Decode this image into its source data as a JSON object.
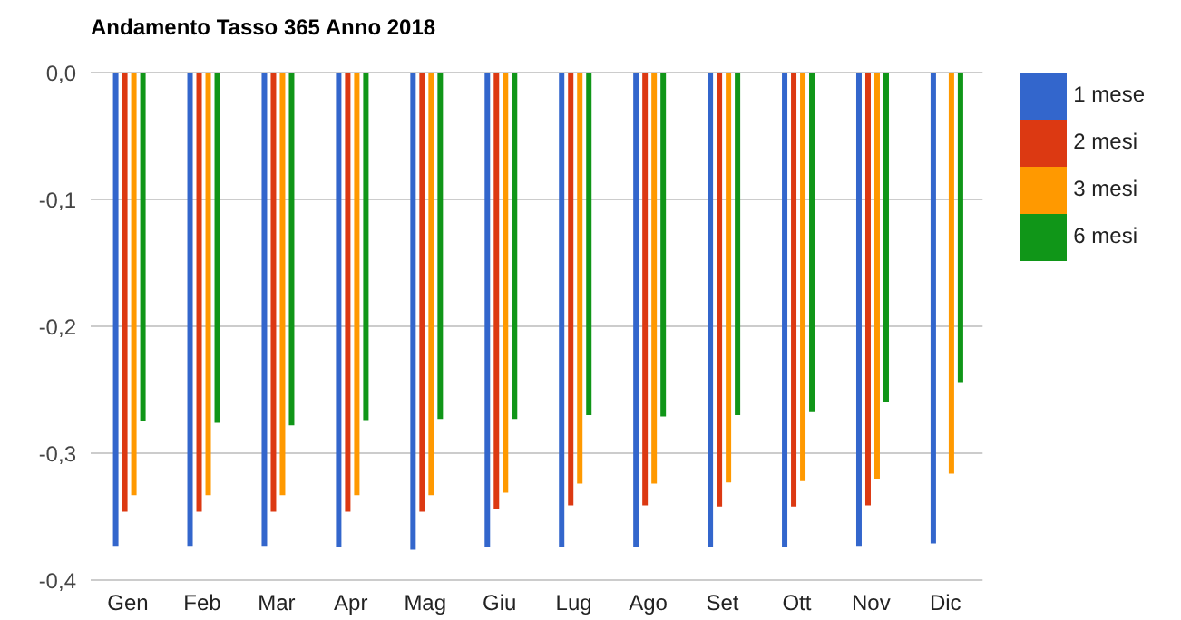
{
  "chart_data": {
    "type": "bar",
    "title": "Andamento Tasso 365 Anno 2018",
    "categories": [
      "Gen",
      "Feb",
      "Mar",
      "Apr",
      "Mag",
      "Giu",
      "Lug",
      "Ago",
      "Set",
      "Ott",
      "Nov",
      "Dic"
    ],
    "series": [
      {
        "name": "1 mese",
        "color": "#3366cc",
        "values": [
          -0.373,
          -0.373,
          -0.373,
          -0.374,
          -0.376,
          -0.374,
          -0.374,
          -0.374,
          -0.374,
          -0.374,
          -0.373,
          -0.371
        ]
      },
      {
        "name": "2 mesi",
        "color": "#dc3912",
        "values": [
          -0.346,
          -0.346,
          -0.346,
          -0.346,
          -0.346,
          -0.344,
          -0.341,
          -0.341,
          -0.342,
          -0.342,
          -0.341,
          null
        ]
      },
      {
        "name": "3 mesi",
        "color": "#ff9900",
        "values": [
          -0.333,
          -0.333,
          -0.333,
          -0.333,
          -0.333,
          -0.331,
          -0.324,
          -0.324,
          -0.323,
          -0.322,
          -0.32,
          -0.316
        ]
      },
      {
        "name": "6 mesi",
        "color": "#109618",
        "values": [
          -0.275,
          -0.276,
          -0.278,
          -0.274,
          -0.273,
          -0.273,
          -0.27,
          -0.271,
          -0.27,
          -0.267,
          -0.26,
          -0.244
        ]
      }
    ],
    "ylim": [
      -0.4,
      0
    ],
    "yticks": [
      {
        "value": -0.4,
        "label": "-0,4"
      },
      {
        "value": -0.3,
        "label": "-0,3"
      },
      {
        "value": -0.2,
        "label": "-0,2"
      },
      {
        "value": -0.1,
        "label": "-0,1"
      },
      {
        "value": 0,
        "label": "0,0"
      }
    ],
    "grid": "y",
    "legend": "top right"
  }
}
